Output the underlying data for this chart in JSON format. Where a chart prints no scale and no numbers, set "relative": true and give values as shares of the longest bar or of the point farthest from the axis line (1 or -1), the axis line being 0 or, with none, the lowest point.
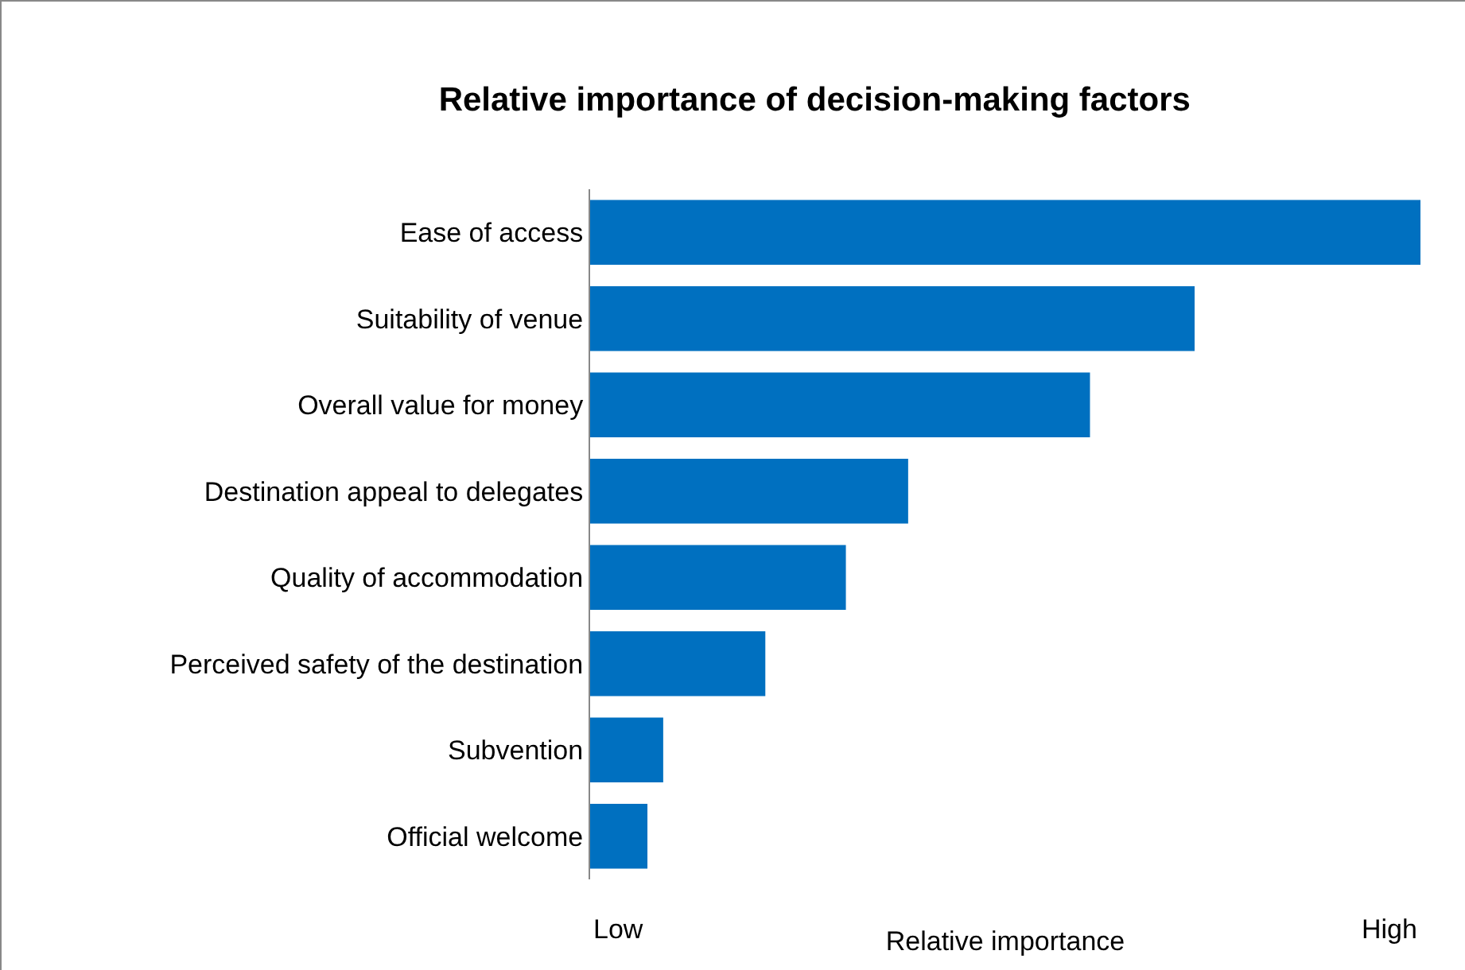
{
  "chart_data": {
    "type": "bar",
    "orientation": "horizontal",
    "relative": true,
    "title": "Relative importance of decision-making factors",
    "xlabel": "Relative importance",
    "categories": [
      "Ease of access",
      "Suitability of venue",
      "Overall value for money",
      "Destination appeal to delegates",
      "Quality of accommodation",
      "Perceived safety of the destination",
      "Subvention",
      "Official welcome"
    ],
    "values": [
      1,
      0.728,
      0.602,
      0.383,
      0.308,
      0.211,
      0.088,
      0.069
    ],
    "color": "#0070c0",
    "grid": false,
    "legend": false,
    "annotations": [
      "Low",
      "High"
    ]
  }
}
